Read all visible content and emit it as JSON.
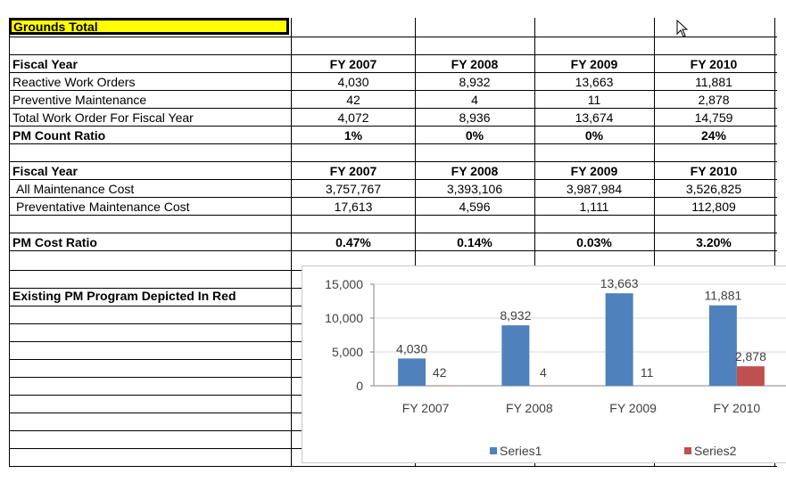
{
  "sheet": {
    "title": "Grounds Total",
    "count_header": {
      "label": "Fiscal Year",
      "years": [
        "FY 2007",
        "FY 2008",
        "FY 2009",
        "FY 2010"
      ]
    },
    "count_rows": [
      {
        "label": "Reactive Work Orders",
        "values": [
          "4,030",
          "8,932",
          "13,663",
          "11,881"
        ]
      },
      {
        "label": "Preventive Maintenance",
        "values": [
          "42",
          "4",
          "11",
          "2,878"
        ]
      },
      {
        "label": "Total Work Order For Fiscal Year",
        "values": [
          "4,072",
          "8,936",
          "13,674",
          "14,759"
        ]
      }
    ],
    "pm_count_ratio": {
      "label": "PM Count Ratio",
      "values": [
        "1%",
        "0%",
        "0%",
        "24%"
      ]
    },
    "cost_header": {
      "label": "Fiscal Year",
      "years": [
        "FY 2007",
        "FY 2008",
        "FY 2009",
        "FY 2010"
      ]
    },
    "cost_rows": [
      {
        "label": "All Maintenance Cost",
        "values": [
          "3,757,767",
          "3,393,106",
          "3,987,984",
          "3,526,825"
        ]
      },
      {
        "label": "Preventative Maintenance Cost",
        "values": [
          "17,613",
          "4,596",
          "1,111",
          "112,809"
        ]
      }
    ],
    "pm_cost_ratio": {
      "label": "PM Cost Ratio",
      "values": [
        "0.47%",
        "0.14%",
        "0.03%",
        "3.20%"
      ]
    },
    "note": "Existing PM Program Depicted In Red"
  },
  "chart_data": {
    "type": "bar",
    "categories": [
      "FY 2007",
      "FY 2008",
      "FY 2009",
      "FY 2010"
    ],
    "series": [
      {
        "name": "Series1",
        "values": [
          4030,
          8932,
          13663,
          11881
        ],
        "color": "#4f81bd"
      },
      {
        "name": "Series2",
        "values": [
          42,
          4,
          11,
          2878
        ],
        "color": "#c0504d"
      }
    ],
    "data_labels": {
      "Series1": [
        "4,030",
        "8,932",
        "13,663",
        "11,881"
      ],
      "Series2": [
        "42",
        "4",
        "11",
        "2,878"
      ]
    },
    "y_ticks": [
      "0",
      "5,000",
      "10,000",
      "15,000"
    ],
    "ylim": [
      0,
      15000
    ],
    "legend_position": "bottom",
    "title": "",
    "xlabel": "",
    "ylabel": ""
  },
  "colors": {
    "title_highlight": "#ffff00",
    "series1": "#4f81bd",
    "series2": "#c0504d"
  },
  "icons": {
    "cursor": "arrow-cursor-icon"
  }
}
